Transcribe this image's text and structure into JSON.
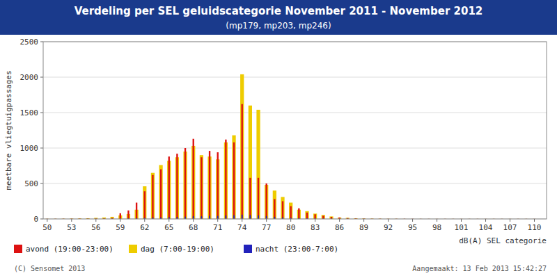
{
  "chart_data": {
    "type": "bar",
    "title": "Verdeling per SEL geluidscategorie November 2011 - November 2012",
    "subtitle": "(mp179, mp203, mp246)",
    "xlabel": "dB(A) SEL categorie",
    "ylabel": "meetbare vliegtuigpassages",
    "annotations": [
      "(C) Sensomet 2013",
      "Aangemaakt: 13 Feb 2013 15:42:27"
    ],
    "x": [
      50,
      51,
      52,
      53,
      54,
      55,
      56,
      57,
      58,
      59,
      60,
      61,
      62,
      63,
      64,
      65,
      66,
      67,
      68,
      69,
      70,
      71,
      72,
      73,
      74,
      75,
      76,
      77,
      78,
      79,
      80,
      81,
      82,
      83,
      84,
      85,
      86,
      87,
      88,
      89,
      90,
      91,
      92,
      93,
      94,
      95,
      96,
      97,
      98,
      99,
      100,
      101,
      102,
      103,
      104,
      105,
      106,
      107,
      108,
      109,
      110
    ],
    "series": [
      {
        "name": "avond (19:00-23:00)",
        "color": "#dd1111",
        "values": [
          2,
          2,
          3,
          4,
          5,
          5,
          6,
          8,
          15,
          80,
          120,
          230,
          390,
          620,
          700,
          880,
          920,
          1000,
          1130,
          870,
          960,
          940,
          1120,
          1080,
          1620,
          580,
          580,
          500,
          280,
          250,
          180,
          150,
          90,
          65,
          45,
          30,
          20,
          12,
          8,
          5,
          3,
          3,
          2,
          2,
          2,
          2,
          1,
          1,
          1,
          1,
          1,
          1,
          1,
          1,
          1,
          1,
          1,
          1,
          1,
          1,
          1
        ]
      },
      {
        "name": "dag (7:00-19:00)",
        "color": "#eecc00",
        "values": [
          2,
          2,
          3,
          5,
          7,
          10,
          15,
          20,
          30,
          50,
          70,
          130,
          460,
          650,
          760,
          820,
          870,
          950,
          1030,
          900,
          880,
          840,
          1080,
          1180,
          2040,
          1600,
          1540,
          480,
          400,
          310,
          230,
          130,
          110,
          75,
          55,
          35,
          20,
          15,
          10,
          6,
          4,
          3,
          2,
          2,
          1,
          1,
          1,
          1,
          1,
          1,
          1,
          1,
          1,
          1,
          1,
          1,
          1,
          1,
          1,
          1,
          1
        ]
      },
      {
        "name": "nacht (23:00-7:00)",
        "color": "#2222bb",
        "values": [
          1,
          1,
          1,
          1,
          1,
          2,
          2,
          3,
          4,
          5,
          8,
          12,
          15,
          20,
          22,
          25,
          28,
          32,
          38,
          38,
          42,
          42,
          48,
          52,
          60,
          55,
          50,
          40,
          30,
          22,
          16,
          12,
          9,
          8,
          6,
          4,
          3,
          3,
          2,
          2,
          1,
          1,
          1,
          1,
          1,
          1,
          1,
          1,
          1,
          1,
          1,
          1,
          1,
          1,
          1,
          1,
          1,
          1,
          1,
          1,
          1
        ]
      }
    ],
    "xlim": [
      49.5,
      111.5
    ],
    "xticks": [
      50,
      53,
      56,
      59,
      62,
      65,
      68,
      71,
      74,
      77,
      80,
      83,
      86,
      89,
      92,
      95,
      98,
      101,
      104,
      107,
      110
    ],
    "ylim": [
      0,
      2500
    ],
    "yticks": [
      0,
      500,
      1000,
      1500,
      2000,
      2500
    ],
    "grid": true,
    "legend": "bottom"
  }
}
